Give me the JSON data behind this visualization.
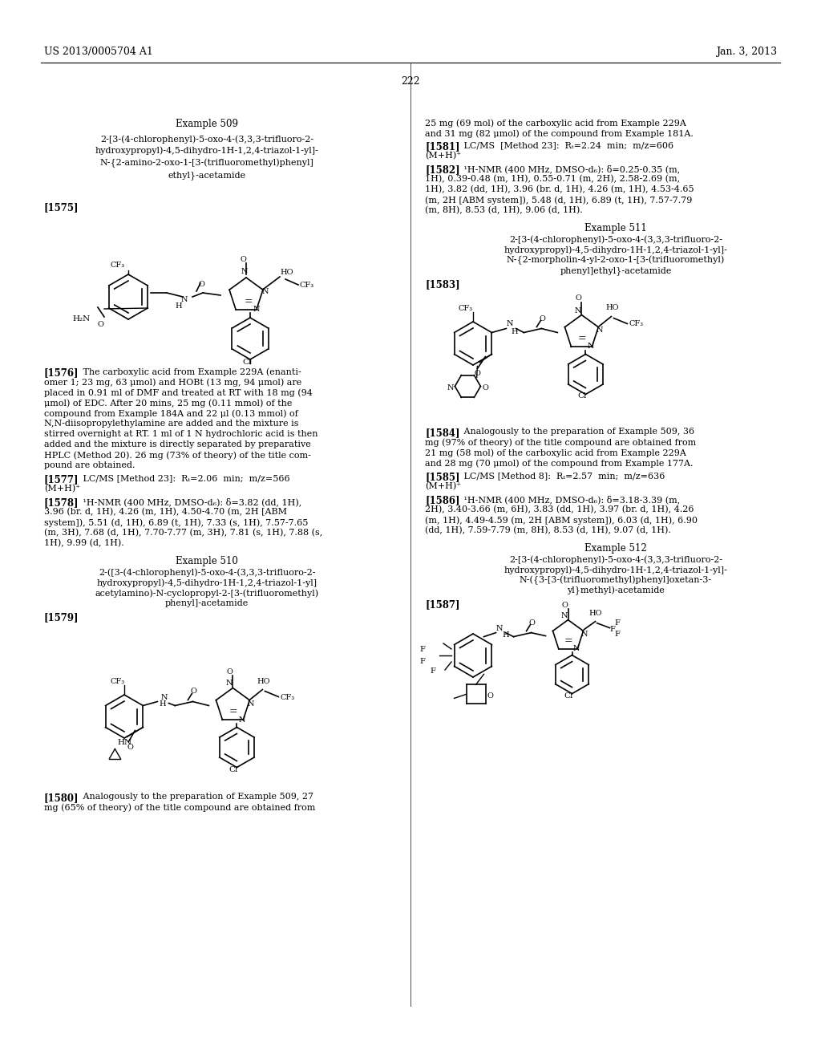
{
  "page_header_left": "US 2013/0005704 A1",
  "page_header_right": "Jan. 3, 2013",
  "page_number": "222",
  "background_color": "#ffffff",
  "text_color": "#000000",
  "figsize": [
    10.24,
    13.2
  ],
  "dpi": 100,
  "left_column": {
    "example509_title": "Example 509",
    "example509_name": "2-[3-(4-chlorophenyl)-5-oxo-4-(3,3,3-trifluoro-2-\nhydroxypropyl)-4,5-dihydro-1H-1,2,4-triazol-1-yl]-\nN-{2-amino-2-oxo-1-[3-(trifluoromethyl)phenyl]\nethyl}-acetamide",
    "ref1575": "[1575]",
    "ref1576_bold": "[1576]",
    "ref1576_text": "   The carboxylic acid from Example 229A (enanti-omer 1; 23 mg, 63 μmol) and HOBt (13 mg, 94 μmol) are placed in 0.91 ml of DMF and treated at RT with 18 mg (94 μmol) of EDC. After 20 mins, 25 mg (0.11 mmol) of the compound from Example 184A and 22 μl (0.13 mmol) of N,N-diisopropylethylamine are added and the mixture is stirred overnight at RT. 1 ml of 1 N hydrochloric acid is then added and the mixture is directly separated by preparative HPLC (Method 20). 26 mg (73% of theory) of the title compound are obtained.",
    "ref1577_bold": "[1577]",
    "ref1577_text": "   LC/MS [Method 23]:  Rₜ=2.06  min;  m/z=566\n(M+H)⁺",
    "ref1578_bold": "[1578]",
    "ref1578_text": "   ¹H-NMR (400 MHz, DMSO-d₆): δ=3.82 (dd, 1H), 3.96 (br. d, 1H), 4.26 (m, 1H), 4.50-4.70 (m, 2H [ABM system]), 5.51 (d, 1H), 6.89 (t, 1H), 7.33 (s, 1H), 7.57-7.65 (m, 3H), 7.68 (d, 1H), 7.70-7.77 (m, 3H), 7.81 (s, 1H), 7.88 (s, 1H), 9.99 (d, 1H).",
    "example510_title": "Example 510",
    "example510_name": "2-([3-(4-chlorophenyl)-5-oxo-4-(3,3,3-trifluoro-2-\nhydroxypropyl)-4,5-dihydro-1H-1,2,4-triazol-1-yl]\nacetylamino)-N-cyclopropyl-2-[3-(trifluoromethyl)\nphenyl]-acetamide",
    "ref1579": "[1579]",
    "ref1580_bold": "[1580]",
    "ref1580_text": "   Analogously to the preparation of Example 509, 27\nmg (65% of theory) of the title compound are obtained from"
  },
  "right_column": {
    "right_intro": "25 mg (69 mol) of the carboxylic acid from Example 229A\nand 31 mg (82 μmol) of the compound from Example 181A.",
    "ref1581_bold": "[1581]",
    "ref1581_text": "   LC/MS  [Method 23]:  Rₜ=2.24  min;  m/z=606\n(M+H)⁺",
    "ref1582_bold": "[1582]",
    "ref1582_text": "   ¹H-NMR (400 MHz, DMSO-d₆): δ=0.25-0.35 (m, 1H), 0.39-0.48 (m, 1H), 0.55-0.71 (m, 2H), 2.58-2.69 (m, 1H), 3.82 (dd, 1H), 3.96 (br. d, 1H), 4.26 (m, 1H), 4.53-4.65 (m, 2H [ABM system]), 5.48 (d, 1H), 6.89 (t, 1H), 7.57-7.79 (m, 8H), 8.53 (d, 1H), 9.06 (d, 1H).",
    "example511_title": "Example 511",
    "example511_name": "2-[3-(4-chlorophenyl)-5-oxo-4-(3,3,3-trifluoro-2-\nhydroxypropyl)-4,5-dihydro-1H-1,2,4-triazol-1-yl]-\nN-{2-morpholin-4-yl-2-oxo-1-[3-(trifluoromethyl)\nphenyl]ethyl}-acetamide",
    "ref1583": "[1583]",
    "ref1584_bold": "[1584]",
    "ref1584_text": "   Analogously to the preparation of Example 509, 36 mg (97% of theory) of the title compound are obtained from 21 mg (58 mol) of the carboxylic acid from Example 229A and 28 mg (70 μmol) of the compound from Example 177A.",
    "ref1585_bold": "[1585]",
    "ref1585_text": "   LC/MS [Method 8]:  Rₜ=2.57  min;  m/z=636\n(M+H)⁺",
    "ref1586_bold": "[1586]",
    "ref1586_text": "   ¹H-NMR (400 MHz, DMSO-d₆): δ=3.18-3.39 (m, 2H), 3.40-3.66 (m, 6H), 3.83 (dd, 1H), 3.97 (br. d, 1H), 4.26 (m, 1H), 4.49-4.59 (m, 2H [ABM system]), 6.03 (d, 1H), 6.90 (dd, 1H), 7.59-7.79 (m, 8H), 8.53 (d, 1H), 9.07 (d, 1H).",
    "example512_title": "Example 512",
    "example512_name": "2-[3-(4-chlorophenyl)-5-oxo-4-(3,3,3-trifluoro-2-\nhydroxypropyl)-4,5-dihydro-1H-1,2,4-triazol-1-yl]-\nN-({3-[3-(trifluoromethyl)phenyl]oxetan-3-\nyl}methyl)-acetamide",
    "ref1587": "[1587]"
  }
}
